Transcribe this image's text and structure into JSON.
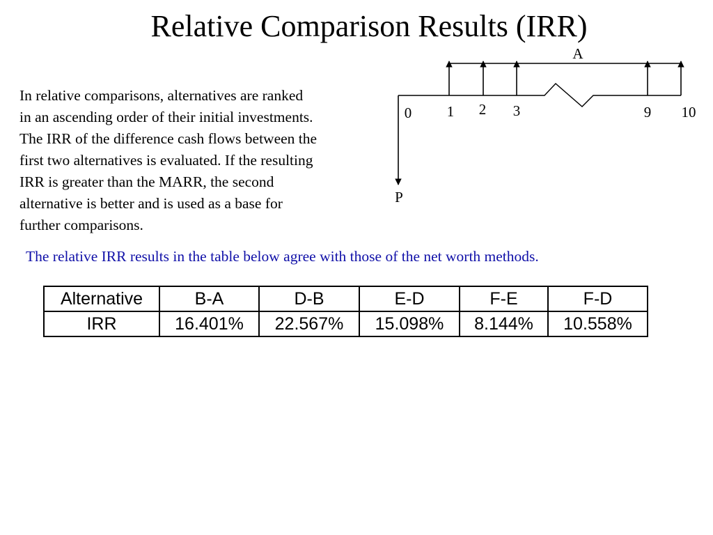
{
  "slide": {
    "title": "Relative Comparison Results (IRR)",
    "intro_lines": [
      "In relative comparisons, alternatives are ranked",
      "in an ascending order of their initial investments.",
      "The IRR of the difference cash flows between the",
      "first two alternatives is evaluated.  If the resulting",
      "IRR is greater than the MARR, the second",
      "alternative is better and is used as a base for",
      "further comparisons."
    ],
    "note": "The relative IRR results in the table below agree with those of the net worth methods.",
    "note_color": "#1010a8"
  },
  "diagram": {
    "annuity_label": "A",
    "present_label": "P",
    "period_labels": [
      "0",
      "1",
      "2",
      "3",
      "9",
      "10"
    ]
  },
  "table": {
    "header_label": "Alternative",
    "row_label": "IRR",
    "columns": [
      {
        "pair": "B-A",
        "irr": "16.401%"
      },
      {
        "pair": "D-B",
        "irr": "22.567%"
      },
      {
        "pair": "E-D",
        "irr": "15.098%"
      },
      {
        "pair": "F-E",
        "irr": "8.144%"
      },
      {
        "pair": "F-D",
        "irr": "10.558%"
      }
    ]
  }
}
